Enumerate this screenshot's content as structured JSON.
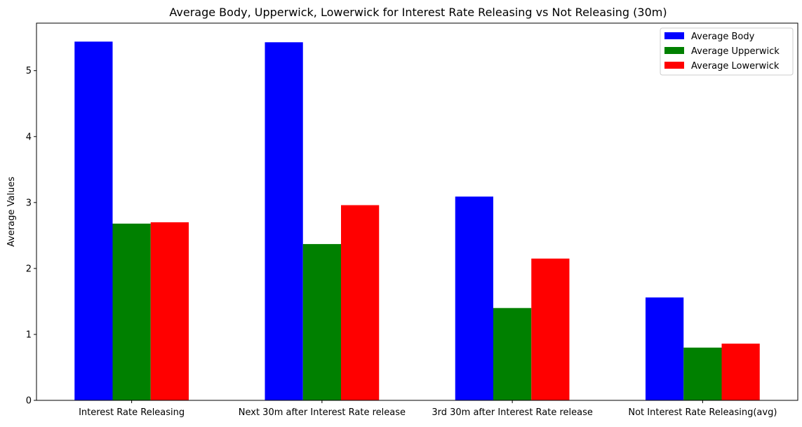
{
  "chart_data": {
    "type": "bar",
    "title": "Average Body, Upperwick, Lowerwick for Interest Rate Releasing vs Not Releasing (30m)",
    "xlabel": "",
    "ylabel": "Average Values",
    "categories": [
      "Interest Rate Releasing",
      "Next 30m after Interest Rate release",
      "3rd 30m after Interest Rate release",
      "Not Interest Rate Releasing(avg)"
    ],
    "series": [
      {
        "name": "Average Body",
        "color": "#0000ff",
        "values": [
          5.44,
          5.43,
          3.09,
          1.56
        ]
      },
      {
        "name": "Average Upperwick",
        "color": "#008000",
        "values": [
          2.68,
          2.37,
          1.4,
          0.8
        ]
      },
      {
        "name": "Average Lowerwick",
        "color": "#ff0000",
        "values": [
          2.7,
          2.96,
          2.15,
          0.86
        ]
      }
    ],
    "ylim": [
      0,
      5.72
    ],
    "yticks": [
      0,
      1,
      2,
      3,
      4,
      5
    ],
    "grid": false,
    "legend_position": "top-right"
  }
}
